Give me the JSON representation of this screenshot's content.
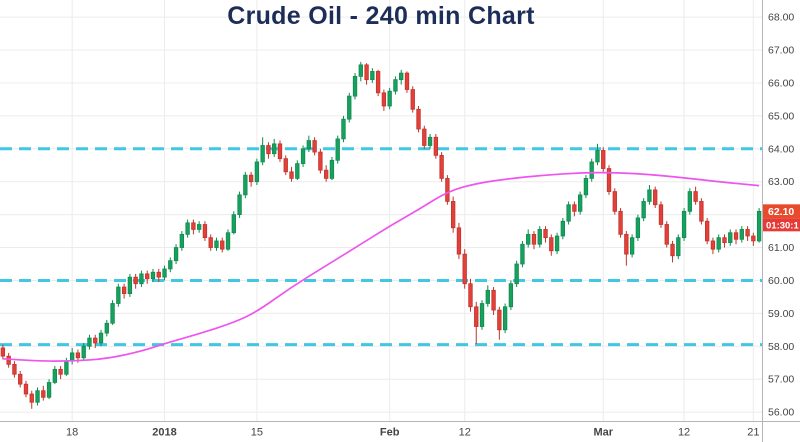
{
  "title": "Crude Oil - 240 min Chart",
  "colors": {
    "up": "#17a05e",
    "up_border": "#0f8a4e",
    "down": "#e24038",
    "down_border": "#bf332c",
    "ma_line": "#ee55ee",
    "level_dashed": "#41c7e3",
    "grid": "#ececec",
    "axis_border": "#b5b5b5",
    "axis_text": "#444444",
    "title_text": "#1c2d58",
    "price_tag_bg": "#e84a2c",
    "countdown_tag_bg": "#e43b36",
    "tag_text": "#ffffff"
  },
  "price_tag": {
    "price_label": "62.10",
    "countdown_label": "01:30:1"
  },
  "chart_data": {
    "type": "candlestick",
    "title": "Crude Oil - 240 min Chart",
    "interval": "240 min",
    "symbol": "Crude Oil",
    "last_price": 62.1,
    "ylim": [
      55.73,
      68.52
    ],
    "grid": true,
    "support_resistance_levels": [
      64.0,
      60.0,
      58.05
    ],
    "y_ticks": [
      {
        "v": 68,
        "label": "68.00"
      },
      {
        "v": 67,
        "label": "67.00"
      },
      {
        "v": 66,
        "label": "66.00"
      },
      {
        "v": 65,
        "label": "65.00"
      },
      {
        "v": 64,
        "label": "64.00"
      },
      {
        "v": 63,
        "label": "63.00"
      },
      {
        "v": 62,
        "label": "62.00"
      },
      {
        "v": 61,
        "label": "61.00"
      },
      {
        "v": 60,
        "label": "60.00"
      },
      {
        "v": 59,
        "label": "59.00"
      },
      {
        "v": 58,
        "label": "58.00"
      },
      {
        "v": 57,
        "label": "57.00"
      },
      {
        "v": 56,
        "label": "56.00"
      }
    ],
    "x_ticks": [
      {
        "i": 12,
        "label": "18",
        "strong": false
      },
      {
        "i": 28,
        "label": "2018",
        "strong": true
      },
      {
        "i": 44,
        "label": "15",
        "strong": false
      },
      {
        "i": 67,
        "label": "Feb",
        "strong": true
      },
      {
        "i": 80,
        "label": "12",
        "strong": false
      },
      {
        "i": 104,
        "label": "Mar",
        "strong": true
      },
      {
        "i": 118,
        "label": "12",
        "strong": false
      },
      {
        "i": 130,
        "label": "21",
        "strong": false
      }
    ],
    "ma_anchor_points": [
      [
        0,
        57.62
      ],
      [
        6,
        57.55
      ],
      [
        12,
        57.55
      ],
      [
        18,
        57.62
      ],
      [
        24,
        57.85
      ],
      [
        28,
        58.08
      ],
      [
        34,
        58.38
      ],
      [
        40,
        58.72
      ],
      [
        44,
        59.05
      ],
      [
        50,
        59.8
      ],
      [
        56,
        60.45
      ],
      [
        62,
        61.1
      ],
      [
        67,
        61.65
      ],
      [
        72,
        62.15
      ],
      [
        77,
        62.7
      ],
      [
        82,
        62.95
      ],
      [
        88,
        63.1
      ],
      [
        94,
        63.2
      ],
      [
        100,
        63.27
      ],
      [
        106,
        63.28
      ],
      [
        112,
        63.22
      ],
      [
        118,
        63.12
      ],
      [
        124,
        63.0
      ],
      [
        131,
        62.88
      ]
    ],
    "candles_ohlc": [
      [
        57.95,
        58.05,
        57.6,
        57.7
      ],
      [
        57.7,
        57.8,
        57.35,
        57.45
      ],
      [
        57.45,
        57.55,
        57.05,
        57.15
      ],
      [
        57.15,
        57.25,
        56.75,
        56.85
      ],
      [
        56.85,
        56.95,
        56.45,
        56.55
      ],
      [
        56.55,
        56.65,
        56.1,
        56.3
      ],
      [
        56.3,
        56.75,
        56.2,
        56.65
      ],
      [
        56.65,
        56.8,
        56.35,
        56.45
      ],
      [
        56.45,
        57.0,
        56.4,
        56.9
      ],
      [
        56.9,
        57.4,
        56.85,
        57.3
      ],
      [
        57.3,
        57.4,
        57.0,
        57.15
      ],
      [
        57.15,
        57.65,
        57.1,
        57.55
      ],
      [
        57.55,
        57.95,
        57.45,
        57.8
      ],
      [
        57.8,
        57.9,
        57.5,
        57.65
      ],
      [
        57.65,
        58.1,
        57.6,
        58.0
      ],
      [
        58.0,
        58.35,
        57.9,
        58.25
      ],
      [
        58.25,
        58.35,
        57.95,
        58.1
      ],
      [
        58.1,
        58.5,
        58.0,
        58.4
      ],
      [
        58.4,
        58.8,
        58.3,
        58.7
      ],
      [
        58.7,
        59.4,
        58.65,
        59.3
      ],
      [
        59.3,
        59.9,
        59.2,
        59.8
      ],
      [
        59.8,
        59.9,
        59.45,
        59.6
      ],
      [
        59.6,
        60.2,
        59.5,
        60.1
      ],
      [
        60.1,
        60.2,
        59.75,
        59.9
      ],
      [
        59.9,
        60.3,
        59.8,
        60.2
      ],
      [
        60.2,
        60.3,
        59.9,
        60.05
      ],
      [
        60.05,
        60.35,
        59.95,
        60.25
      ],
      [
        60.25,
        60.35,
        59.95,
        60.1
      ],
      [
        60.1,
        60.45,
        60.0,
        60.35
      ],
      [
        60.35,
        60.7,
        60.25,
        60.6
      ],
      [
        60.6,
        61.1,
        60.5,
        61.0
      ],
      [
        61.0,
        61.5,
        60.9,
        61.4
      ],
      [
        61.4,
        61.85,
        61.3,
        61.75
      ],
      [
        61.75,
        61.85,
        61.4,
        61.55
      ],
      [
        61.55,
        61.8,
        61.45,
        61.7
      ],
      [
        61.7,
        61.8,
        61.2,
        61.3
      ],
      [
        61.3,
        61.4,
        60.9,
        61.0
      ],
      [
        61.0,
        61.3,
        60.9,
        61.2
      ],
      [
        61.2,
        61.3,
        60.85,
        60.95
      ],
      [
        60.95,
        61.55,
        60.9,
        61.45
      ],
      [
        61.45,
        62.1,
        61.4,
        62.0
      ],
      [
        62.0,
        62.7,
        61.9,
        62.6
      ],
      [
        62.6,
        63.3,
        62.5,
        63.2
      ],
      [
        63.2,
        63.3,
        62.85,
        63.0
      ],
      [
        63.0,
        63.7,
        62.9,
        63.6
      ],
      [
        63.6,
        64.35,
        63.5,
        64.1
      ],
      [
        64.1,
        64.2,
        63.7,
        63.85
      ],
      [
        63.85,
        64.3,
        63.75,
        64.15
      ],
      [
        64.15,
        64.25,
        63.6,
        63.7
      ],
      [
        63.7,
        63.8,
        63.2,
        63.3
      ],
      [
        63.3,
        63.45,
        63.0,
        63.1
      ],
      [
        63.1,
        63.65,
        63.05,
        63.55
      ],
      [
        63.55,
        64.1,
        63.45,
        64.0
      ],
      [
        64.0,
        64.4,
        63.9,
        64.25
      ],
      [
        64.25,
        64.35,
        63.8,
        63.9
      ],
      [
        63.9,
        64.0,
        63.25,
        63.35
      ],
      [
        63.35,
        63.5,
        63.0,
        63.1
      ],
      [
        63.1,
        63.75,
        63.05,
        63.65
      ],
      [
        63.65,
        64.4,
        63.55,
        64.3
      ],
      [
        64.3,
        65.0,
        64.2,
        64.9
      ],
      [
        64.9,
        65.7,
        64.8,
        65.6
      ],
      [
        65.6,
        66.3,
        65.5,
        66.2
      ],
      [
        66.2,
        66.64,
        66.05,
        66.55
      ],
      [
        66.55,
        66.6,
        65.95,
        66.1
      ],
      [
        66.1,
        66.45,
        66.0,
        66.35
      ],
      [
        66.35,
        66.4,
        65.6,
        65.7
      ],
      [
        65.7,
        65.8,
        65.15,
        65.3
      ],
      [
        65.3,
        65.85,
        65.2,
        65.75
      ],
      [
        65.75,
        66.2,
        65.65,
        66.1
      ],
      [
        66.1,
        66.4,
        65.95,
        66.3
      ],
      [
        66.3,
        66.35,
        65.7,
        65.8
      ],
      [
        65.8,
        65.9,
        65.1,
        65.2
      ],
      [
        65.2,
        65.3,
        64.5,
        64.6
      ],
      [
        64.6,
        64.7,
        64.0,
        64.1
      ],
      [
        64.1,
        64.45,
        64.0,
        64.35
      ],
      [
        64.35,
        64.45,
        63.7,
        63.8
      ],
      [
        63.8,
        63.9,
        63.0,
        63.1
      ],
      [
        63.1,
        63.2,
        62.3,
        62.4
      ],
      [
        62.4,
        62.55,
        61.45,
        61.6
      ],
      [
        61.6,
        61.75,
        60.65,
        60.8
      ],
      [
        60.8,
        60.95,
        59.75,
        59.9
      ],
      [
        59.9,
        60.05,
        59.05,
        59.2
      ],
      [
        59.2,
        59.35,
        58.07,
        58.6
      ],
      [
        58.6,
        59.4,
        58.5,
        59.3
      ],
      [
        59.3,
        59.85,
        59.2,
        59.7
      ],
      [
        59.7,
        59.8,
        58.95,
        59.1
      ],
      [
        59.1,
        59.2,
        58.2,
        58.5
      ],
      [
        58.5,
        59.3,
        58.4,
        59.2
      ],
      [
        59.2,
        60.0,
        59.1,
        59.9
      ],
      [
        59.9,
        60.6,
        59.8,
        60.5
      ],
      [
        60.5,
        61.2,
        60.4,
        61.1
      ],
      [
        61.1,
        61.55,
        61.0,
        61.4
      ],
      [
        61.4,
        61.5,
        60.95,
        61.1
      ],
      [
        61.1,
        61.65,
        61.0,
        61.55
      ],
      [
        61.55,
        61.65,
        61.15,
        61.3
      ],
      [
        61.3,
        61.4,
        60.75,
        60.9
      ],
      [
        60.9,
        61.45,
        60.8,
        61.35
      ],
      [
        61.35,
        61.9,
        61.25,
        61.8
      ],
      [
        61.8,
        62.4,
        61.7,
        62.3
      ],
      [
        62.3,
        62.4,
        61.95,
        62.1
      ],
      [
        62.1,
        62.7,
        62.0,
        62.6
      ],
      [
        62.6,
        63.2,
        62.5,
        63.1
      ],
      [
        63.1,
        63.7,
        63.0,
        63.6
      ],
      [
        63.6,
        64.15,
        63.5,
        63.95
      ],
      [
        63.95,
        64.05,
        63.3,
        63.4
      ],
      [
        63.4,
        63.5,
        62.6,
        62.7
      ],
      [
        62.7,
        62.8,
        62.0,
        62.1
      ],
      [
        62.1,
        62.2,
        61.3,
        61.4
      ],
      [
        61.4,
        61.5,
        60.45,
        60.8
      ],
      [
        60.8,
        61.4,
        60.7,
        61.3
      ],
      [
        61.3,
        62.0,
        61.2,
        61.9
      ],
      [
        61.9,
        62.5,
        61.8,
        62.4
      ],
      [
        62.4,
        62.9,
        62.3,
        62.75
      ],
      [
        62.75,
        62.85,
        62.2,
        62.3
      ],
      [
        62.3,
        62.4,
        61.6,
        61.7
      ],
      [
        61.7,
        61.8,
        61.0,
        61.1
      ],
      [
        61.1,
        61.2,
        60.55,
        60.75
      ],
      [
        60.75,
        61.4,
        60.65,
        61.3
      ],
      [
        61.3,
        62.2,
        61.2,
        62.1
      ],
      [
        62.1,
        62.8,
        62.0,
        62.7
      ],
      [
        62.7,
        62.85,
        62.3,
        62.4
      ],
      [
        62.4,
        62.5,
        61.7,
        61.8
      ],
      [
        61.8,
        61.9,
        61.1,
        61.2
      ],
      [
        61.2,
        61.3,
        60.8,
        60.95
      ],
      [
        60.95,
        61.4,
        60.85,
        61.3
      ],
      [
        61.3,
        61.4,
        61.0,
        61.15
      ],
      [
        61.15,
        61.55,
        61.05,
        61.45
      ],
      [
        61.45,
        61.55,
        61.1,
        61.25
      ],
      [
        61.25,
        61.65,
        61.15,
        61.55
      ],
      [
        61.55,
        61.65,
        61.2,
        61.35
      ],
      [
        61.35,
        61.45,
        61.05,
        61.2
      ],
      [
        61.2,
        62.2,
        61.15,
        62.1
      ]
    ]
  }
}
